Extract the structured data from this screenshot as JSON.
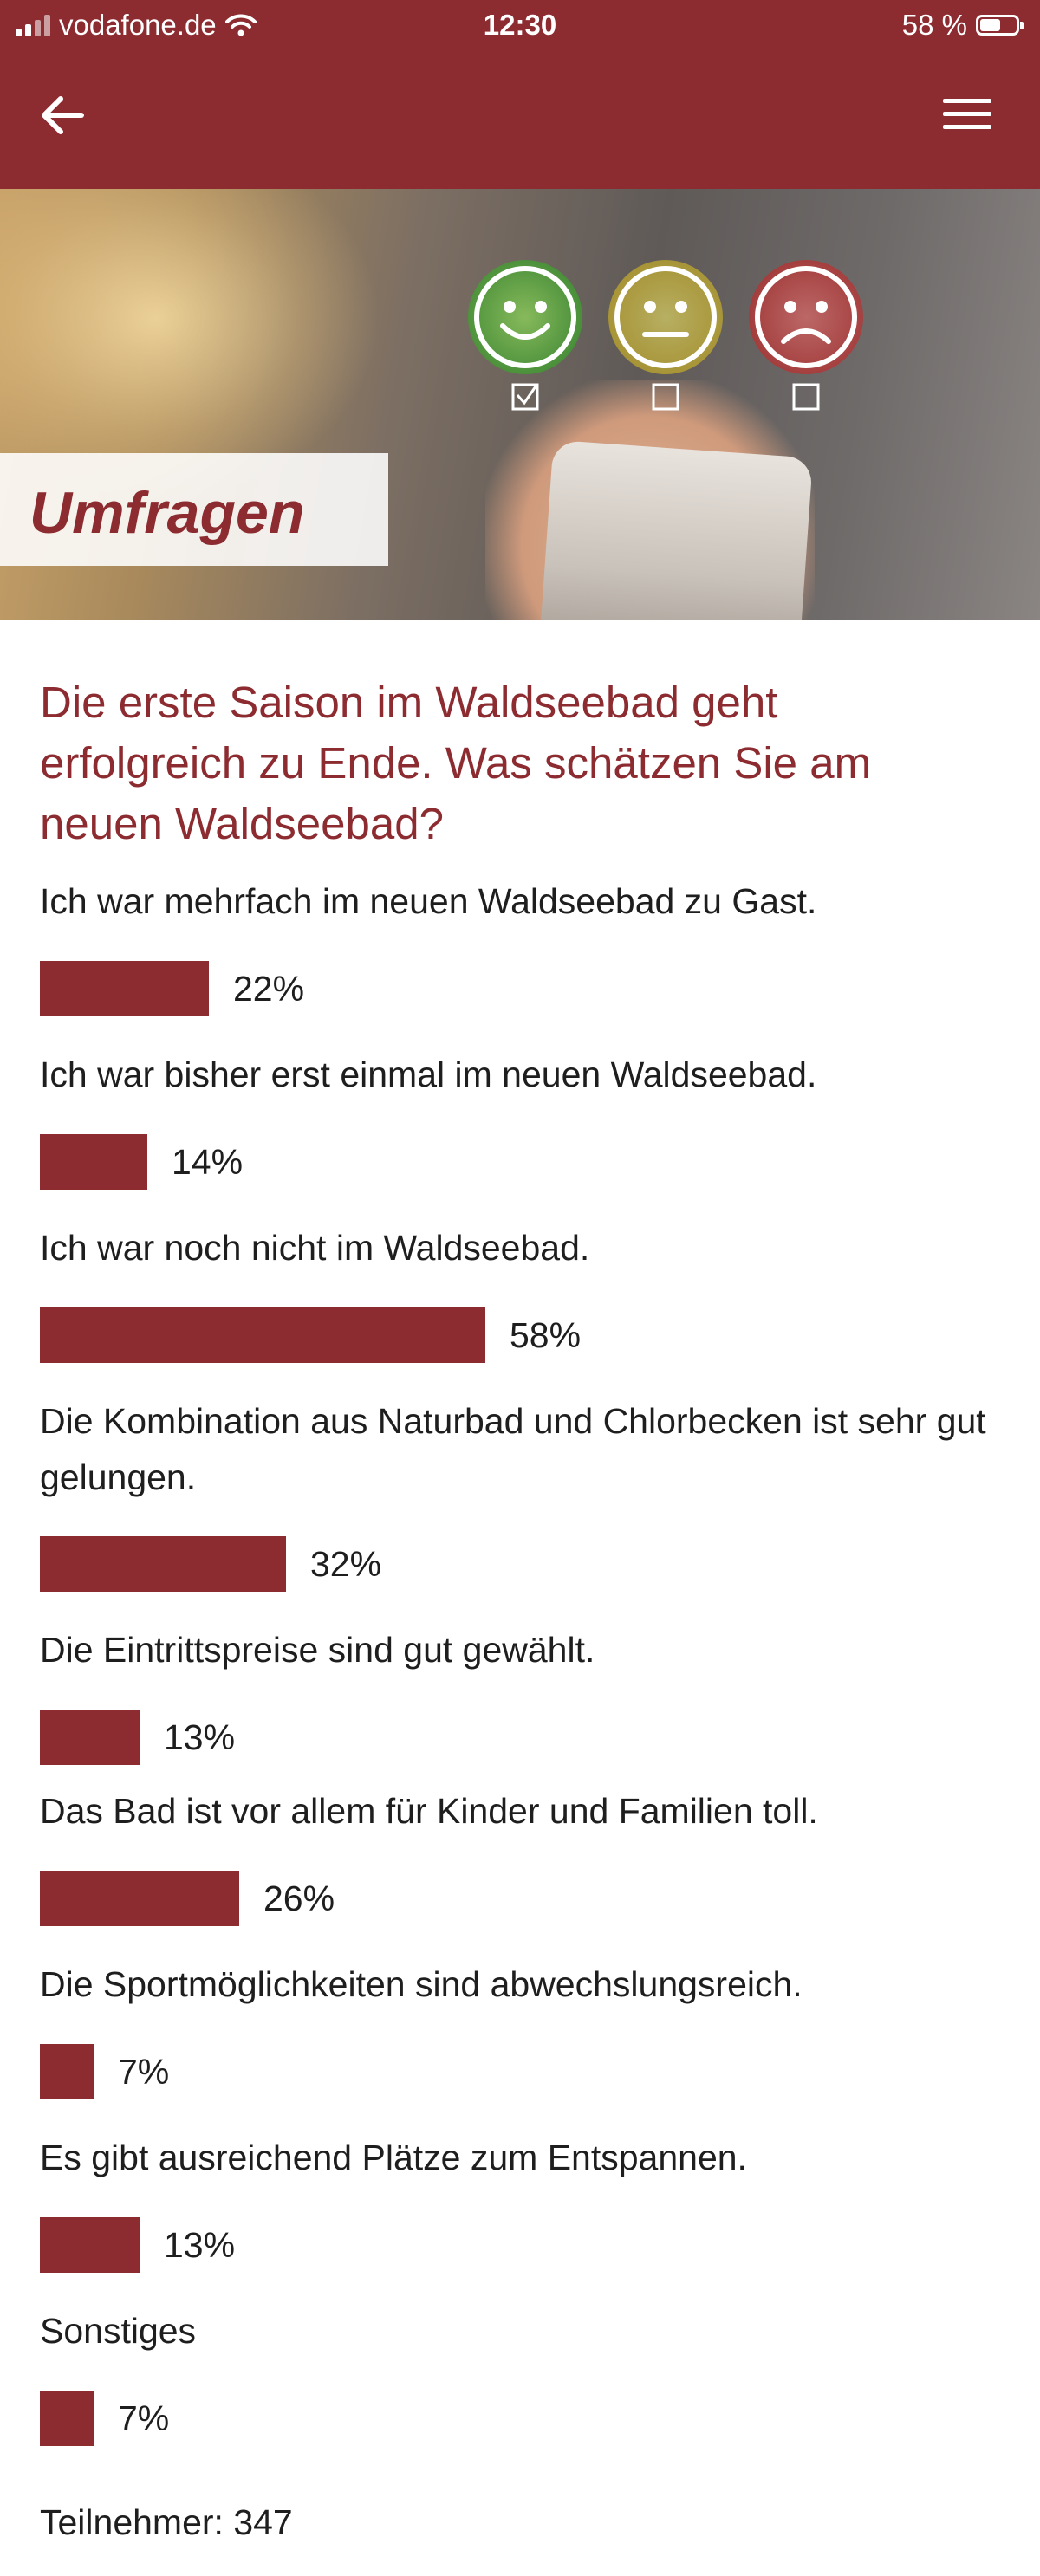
{
  "status_bar": {
    "carrier": "vodafone.de",
    "time": "12:30",
    "battery": "58 %",
    "battery_level": 0.58
  },
  "hero": {
    "title": "Umfragen"
  },
  "survey": {
    "question": "Die erste Saison im Waldseebad geht erfolgreich zu Ende. Was schätzen Sie am neuen Waldseebad?",
    "answers": [
      {
        "label": "Ich war mehrfach im neuen Waldseebad zu Gast.",
        "percent": 22,
        "percent_label": "22%"
      },
      {
        "label": "Ich war bisher erst einmal im neuen Waldseebad.",
        "percent": 14,
        "percent_label": "14%"
      },
      {
        "label": "Ich war noch nicht im Waldseebad.",
        "percent": 58,
        "percent_label": "58%"
      },
      {
        "label": "Die Kombination aus Naturbad und Chlorbecken ist sehr gut gelungen.",
        "percent": 32,
        "percent_label": "32%"
      },
      {
        "label": "Die Eintrittspreise sind gut gewählt.",
        "percent": 13,
        "percent_label": "13%"
      },
      {
        "label": "Das Bad ist vor allem für Kinder und Familien toll.",
        "percent": 26,
        "percent_label": "26%"
      },
      {
        "label": "Die Sportmöglichkeiten sind abwechslungsreich.",
        "percent": 7,
        "percent_label": "7%"
      },
      {
        "label": "Es gibt ausreichend Plätze zum Entspannen.",
        "percent": 13,
        "percent_label": "13%"
      },
      {
        "label": "Sonstiges",
        "percent": 7,
        "percent_label": "7%"
      }
    ],
    "participants_label": "Teilnehmer: 347"
  },
  "colors": {
    "brand": "#8c2b30",
    "text": "#1e1e1e"
  },
  "icons": {
    "back": "arrow-left-icon",
    "menu": "hamburger-menu-icon",
    "wifi": "wifi-icon",
    "signal": "cellular-signal-icon",
    "battery": "battery-icon"
  }
}
